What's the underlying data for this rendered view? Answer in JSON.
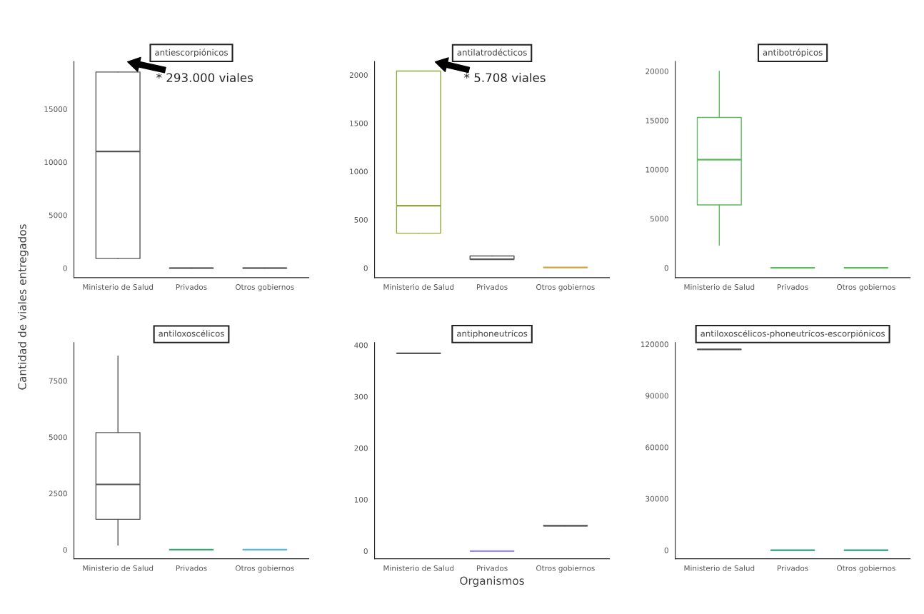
{
  "chart_data": [
    {
      "type": "box",
      "title": "antiescorpiónicos",
      "ylabel": "Cantidad de viales entregados",
      "categories": [
        "Ministerio de Salud",
        "Privados",
        "Otros gobiernos"
      ],
      "colors": [
        "#555555",
        "#555555",
        "#555555"
      ],
      "boxes": [
        {
          "low": 900,
          "q1": 900,
          "median": 11000,
          "q3": 18500,
          "high": 18500
        },
        {
          "low": 0,
          "q1": 0,
          "median": 0,
          "q3": 0,
          "high": 0
        },
        {
          "low": 0,
          "q1": 0,
          "median": 0,
          "q3": 0,
          "high": 0
        }
      ],
      "ylim": [
        -900,
        19500
      ],
      "yticks": [
        0,
        5000,
        10000,
        15000
      ],
      "annotations": [
        "* 293.000 viales"
      ]
    },
    {
      "type": "box",
      "title": "antilatrodécticos",
      "categories": [
        "Ministerio de Salud",
        "Privados",
        "Otros gobiernos"
      ],
      "colors": [
        "#8fa83a",
        "#555555",
        "#d9a040"
      ],
      "boxes": [
        {
          "low": 360,
          "q1": 360,
          "median": 645,
          "q3": 2040,
          "high": 2040
        },
        {
          "low": 90,
          "q1": 90,
          "median": 90,
          "q3": 125,
          "high": 125
        },
        {
          "low": 5,
          "q1": 5,
          "median": 5,
          "q3": 5,
          "high": 5
        }
      ],
      "ylim": [
        -100,
        2140
      ],
      "yticks": [
        0,
        500,
        1000,
        1500,
        2000
      ],
      "annotations": [
        "* 5.708 viales"
      ]
    },
    {
      "type": "box",
      "title": "antibotrópicos",
      "categories": [
        "Ministerio de Salud",
        "Privados",
        "Otros gobiernos"
      ],
      "colors": [
        "#5cb85c",
        "#5cb85c",
        "#5cb85c"
      ],
      "boxes": [
        {
          "low": 2300,
          "q1": 6400,
          "median": 11000,
          "q3": 15300,
          "high": 20000
        },
        {
          "low": 0,
          "q1": 0,
          "median": 0,
          "q3": 0,
          "high": 0
        },
        {
          "low": 0,
          "q1": 0,
          "median": 0,
          "q3": 0,
          "high": 0
        }
      ],
      "ylim": [
        -1000,
        21000
      ],
      "yticks": [
        0,
        5000,
        10000,
        15000,
        20000
      ]
    },
    {
      "type": "box",
      "title": "antiloxoscélicos",
      "categories": [
        "Ministerio de Salud",
        "Privados",
        "Otros gobiernos"
      ],
      "colors": [
        "#555555",
        "#3aa676",
        "#5ab4d6"
      ],
      "boxes": [
        {
          "low": 200,
          "q1": 1350,
          "median": 2900,
          "q3": 5200,
          "high": 8600
        },
        {
          "low": 0,
          "q1": 0,
          "median": 0,
          "q3": 0,
          "high": 0
        },
        {
          "low": 0,
          "q1": 0,
          "median": 0,
          "q3": 0,
          "high": 0
        }
      ],
      "ylim": [
        -400,
        9200
      ],
      "yticks": [
        0,
        2500,
        5000,
        7500
      ]
    },
    {
      "type": "box",
      "title": "antiphoneutrícos",
      "xlabel": "Organismos",
      "categories": [
        "Ministerio de Salud",
        "Privados",
        "Otros gobiernos"
      ],
      "colors": [
        "#555555",
        "#9a8cf0",
        "#555555"
      ],
      "boxes": [
        {
          "low": 384,
          "q1": 384,
          "median": 384,
          "q3": 384,
          "high": 384
        },
        {
          "low": 0,
          "q1": 0,
          "median": 0,
          "q3": 0,
          "high": 0
        },
        {
          "low": 49,
          "q1": 49,
          "median": 49,
          "q3": 49,
          "high": 49
        }
      ],
      "ylim": [
        -15,
        405
      ],
      "yticks": [
        0,
        100,
        200,
        300,
        400
      ]
    },
    {
      "type": "box",
      "title": "antiloxoscélicos-phoneutrícos-escorpiónicos",
      "categories": [
        "Ministerio de Salud",
        "Privados",
        "Otros gobiernos"
      ],
      "colors": [
        "#555555",
        "#2ca57a",
        "#2ca57a"
      ],
      "boxes": [
        {
          "low": 117000,
          "q1": 117000,
          "median": 117000,
          "q3": 117000,
          "high": 117000
        },
        {
          "low": 0,
          "q1": 0,
          "median": 0,
          "q3": 0,
          "high": 0
        },
        {
          "low": 0,
          "q1": 0,
          "median": 0,
          "q3": 0,
          "high": 0
        }
      ],
      "ylim": [
        -5000,
        121000
      ],
      "yticks": [
        0,
        30000,
        60000,
        90000,
        120000
      ]
    }
  ]
}
